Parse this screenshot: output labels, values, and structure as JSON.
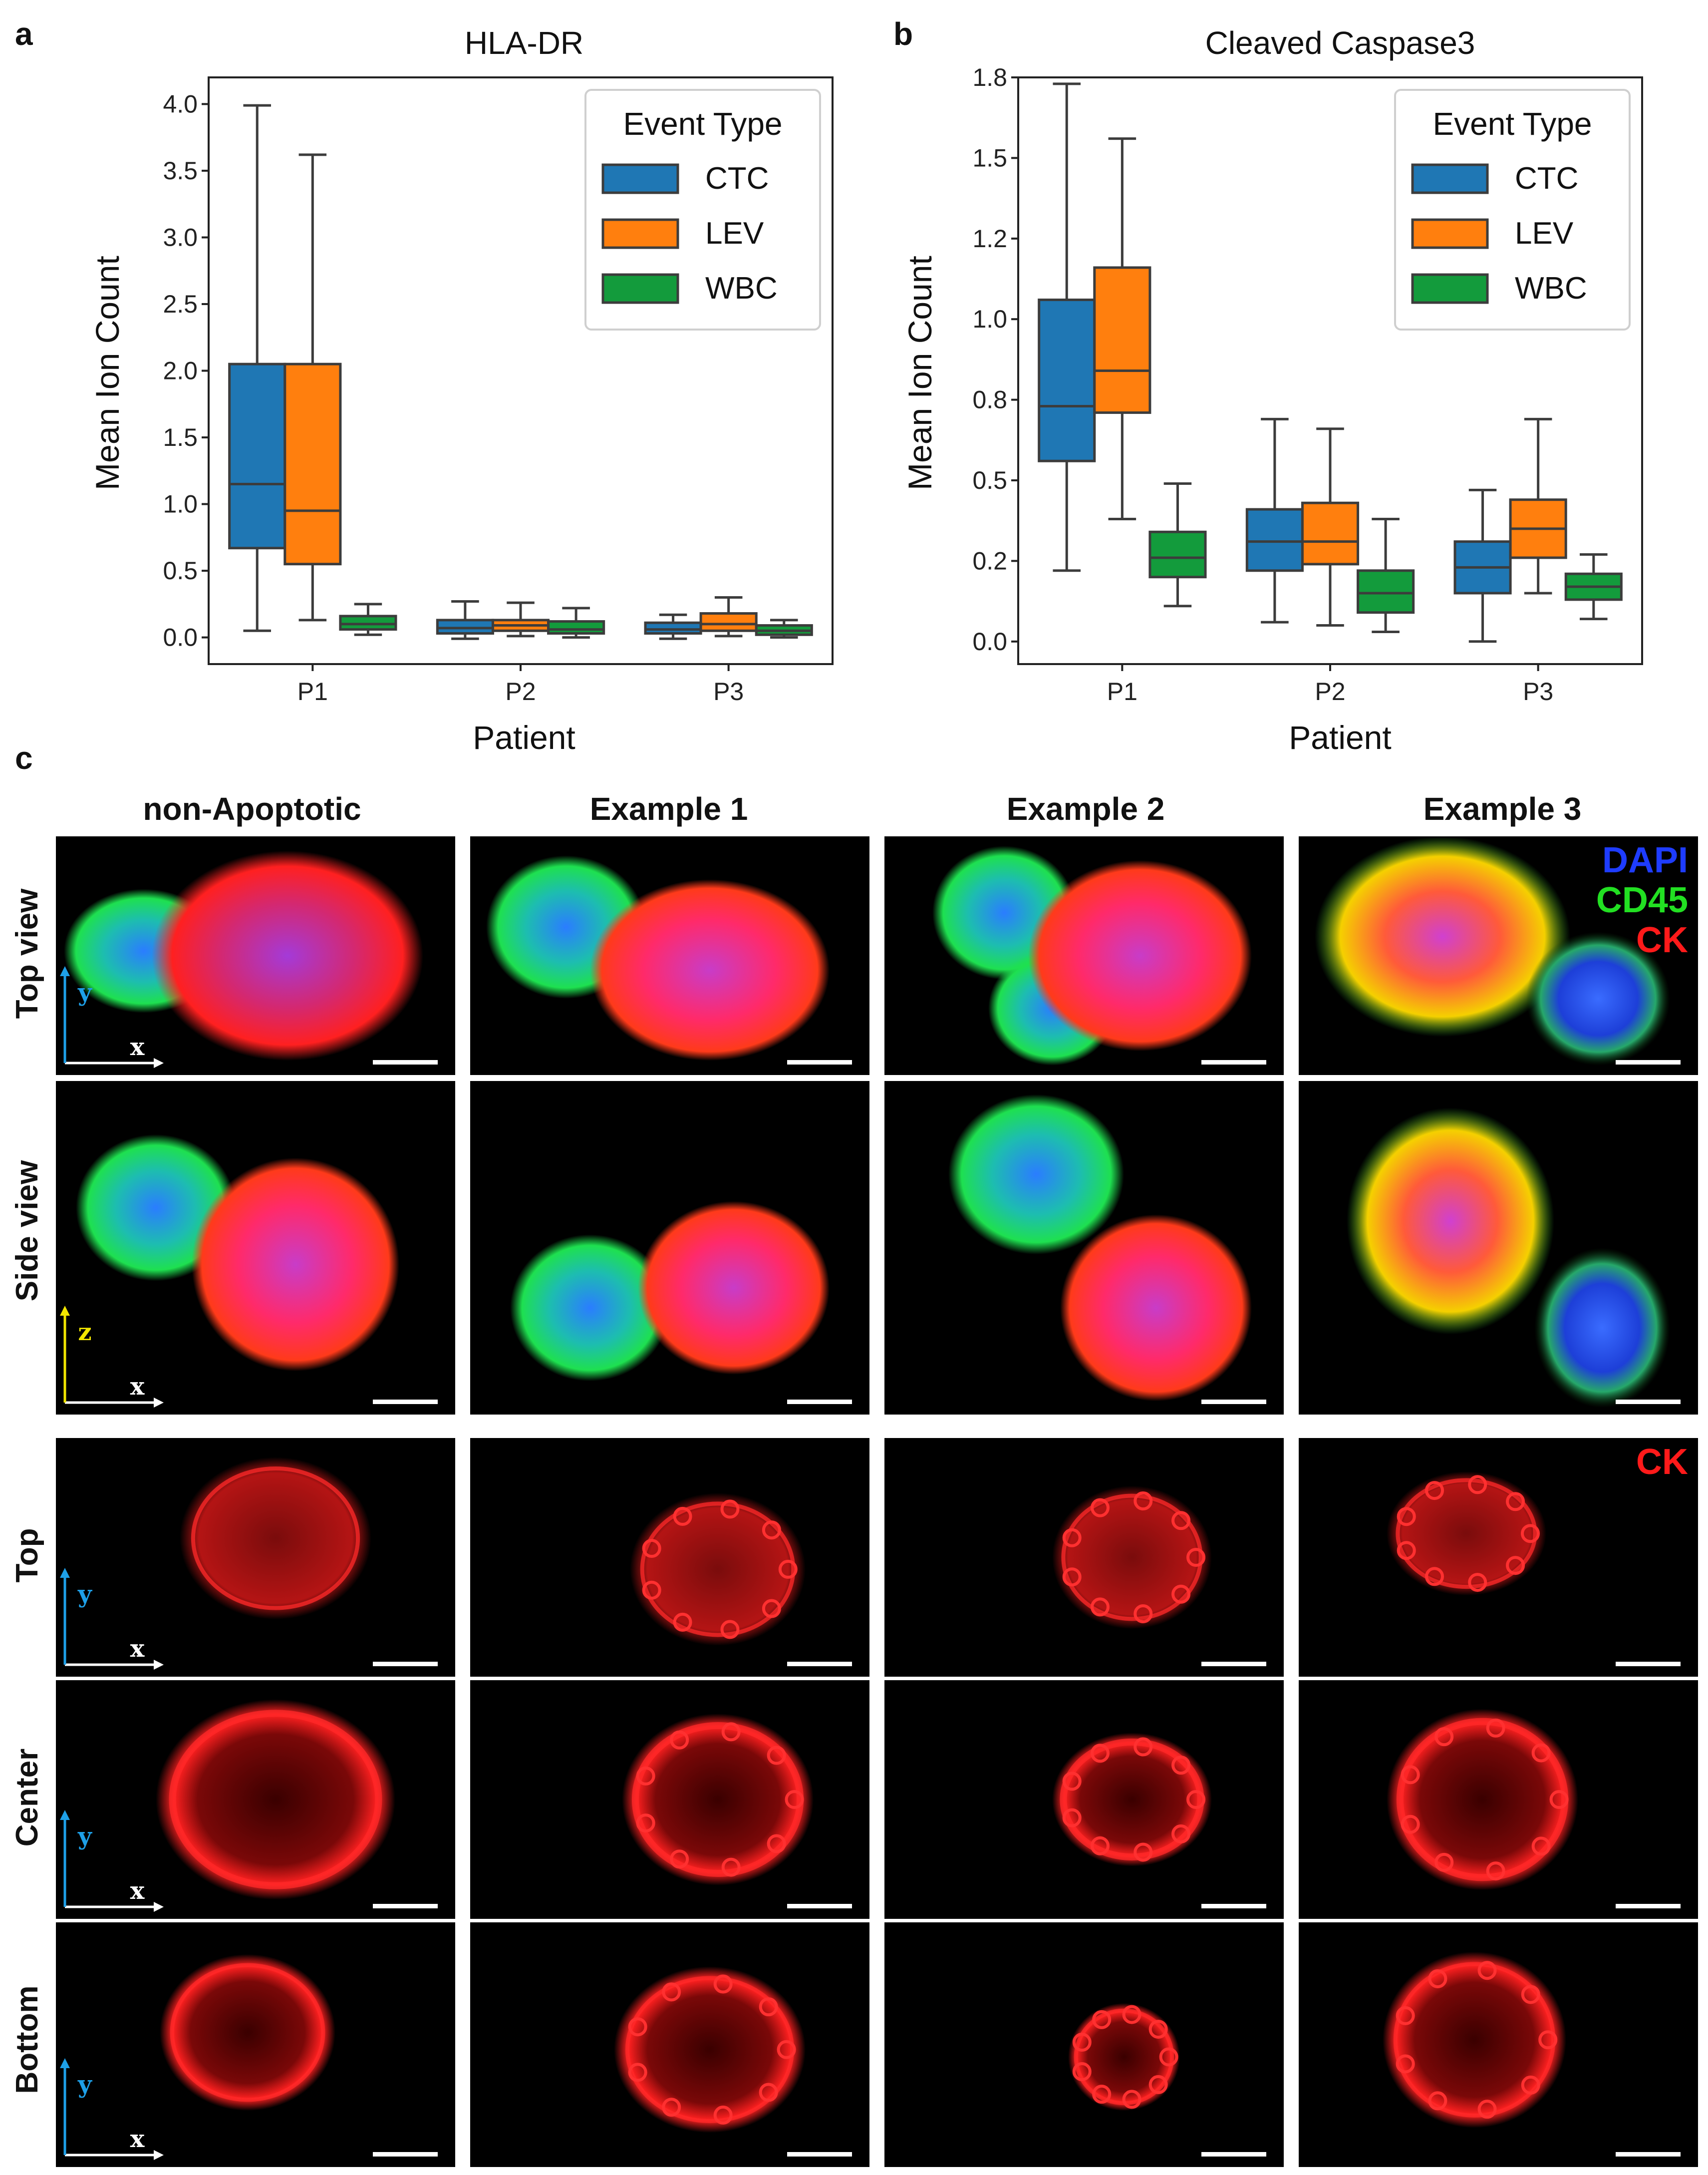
{
  "colors": {
    "CTC": "#1f77b4",
    "CTC_fill": "#1a78ad",
    "LEV": "#ff7f0e",
    "WBC": "#139b3c",
    "box_edge": "#3c3c3c",
    "dapi": "#1e3cff",
    "cd45": "#22e022",
    "ck": "#ff1a1a",
    "y_arrow": "#1ea0e8",
    "z_arrow": "#f2e600"
  },
  "panel_letters": {
    "a": "a",
    "b": "b",
    "c": "c"
  },
  "chart_data": [
    {
      "type": "box",
      "panel": "a",
      "title": "HLA-DR",
      "xlabel": "Patient",
      "ylabel": "Mean Ion Count",
      "categories": [
        "P1",
        "P2",
        "P3"
      ],
      "ylim": [
        -0.2,
        4.2
      ],
      "yticks": [
        0.0,
        0.5,
        1.0,
        1.5,
        2.0,
        2.5,
        3.0,
        3.5,
        4.0
      ],
      "ytick_labels": [
        "0.0",
        "0.5",
        "1.0",
        "1.5",
        "2.0",
        "2.5",
        "3.0",
        "3.5",
        "4.0"
      ],
      "legend": {
        "title": "Event Type",
        "position": "top-right",
        "entries": [
          "CTC",
          "LEV",
          "WBC"
        ]
      },
      "series": [
        {
          "name": "CTC",
          "boxes": [
            {
              "whislo": 0.05,
              "q1": 0.67,
              "med": 1.15,
              "q3": 2.05,
              "whishi": 3.99
            },
            {
              "whislo": -0.01,
              "q1": 0.03,
              "med": 0.07,
              "q3": 0.13,
              "whishi": 0.27
            },
            {
              "whislo": -0.01,
              "q1": 0.03,
              "med": 0.06,
              "q3": 0.11,
              "whishi": 0.17
            }
          ]
        },
        {
          "name": "LEV",
          "boxes": [
            {
              "whislo": 0.13,
              "q1": 0.55,
              "med": 0.95,
              "q3": 2.05,
              "whishi": 3.62
            },
            {
              "whislo": 0.01,
              "q1": 0.05,
              "med": 0.09,
              "q3": 0.13,
              "whishi": 0.26
            },
            {
              "whislo": 0.01,
              "q1": 0.05,
              "med": 0.1,
              "q3": 0.18,
              "whishi": 0.3
            }
          ]
        },
        {
          "name": "WBC",
          "boxes": [
            {
              "whislo": 0.02,
              "q1": 0.06,
              "med": 0.1,
              "q3": 0.16,
              "whishi": 0.25
            },
            {
              "whislo": 0.0,
              "q1": 0.03,
              "med": 0.06,
              "q3": 0.12,
              "whishi": 0.22
            },
            {
              "whislo": 0.0,
              "q1": 0.02,
              "med": 0.05,
              "q3": 0.09,
              "whishi": 0.13
            }
          ]
        }
      ]
    },
    {
      "type": "box",
      "panel": "b",
      "title": "Cleaved Caspase3",
      "xlabel": "Patient",
      "ylabel": "Mean Ion Count",
      "categories": [
        "P1",
        "P2",
        "P3"
      ],
      "ylim": [
        -0.07,
        1.75
      ],
      "yticks": [
        0.0,
        0.25,
        0.5,
        0.75,
        1.0,
        1.25,
        1.5,
        1.75
      ],
      "ytick_labels": [
        "0.0",
        "0.2",
        "0.5",
        "0.8",
        "1.0",
        "1.2",
        "1.5",
        "1.8"
      ],
      "legend": {
        "title": "Event Type",
        "position": "top-right",
        "entries": [
          "CTC",
          "LEV",
          "WBC"
        ]
      },
      "series": [
        {
          "name": "CTC",
          "boxes": [
            {
              "whislo": 0.22,
              "q1": 0.56,
              "med": 0.73,
              "q3": 1.06,
              "whishi": 1.73
            },
            {
              "whislo": 0.06,
              "q1": 0.22,
              "med": 0.31,
              "q3": 0.41,
              "whishi": 0.69
            },
            {
              "whislo": 0.0,
              "q1": 0.15,
              "med": 0.23,
              "q3": 0.31,
              "whishi": 0.47
            }
          ]
        },
        {
          "name": "LEV",
          "boxes": [
            {
              "whislo": 0.38,
              "q1": 0.71,
              "med": 0.84,
              "q3": 1.16,
              "whishi": 1.56
            },
            {
              "whislo": 0.05,
              "q1": 0.24,
              "med": 0.31,
              "q3": 0.43,
              "whishi": 0.66
            },
            {
              "whislo": 0.15,
              "q1": 0.26,
              "med": 0.35,
              "q3": 0.44,
              "whishi": 0.69
            }
          ]
        },
        {
          "name": "WBC",
          "boxes": [
            {
              "whislo": 0.11,
              "q1": 0.2,
              "med": 0.26,
              "q3": 0.34,
              "whishi": 0.49
            },
            {
              "whislo": 0.03,
              "q1": 0.09,
              "med": 0.15,
              "q3": 0.22,
              "whishi": 0.38
            },
            {
              "whislo": 0.07,
              "q1": 0.13,
              "med": 0.17,
              "q3": 0.21,
              "whishi": 0.27
            }
          ]
        }
      ]
    }
  ],
  "panel_c": {
    "columns": [
      "non-Apoptotic",
      "Example 1",
      "Example 2",
      "Example 3"
    ],
    "rows": [
      "Top view",
      "Side view",
      "Top",
      "Center",
      "Bottom"
    ],
    "legend_rgb": [
      "DAPI",
      "CD45",
      "CK"
    ],
    "legend_ck": "CK",
    "axis_x": "x",
    "axis_y": "y",
    "axis_z": "z"
  }
}
